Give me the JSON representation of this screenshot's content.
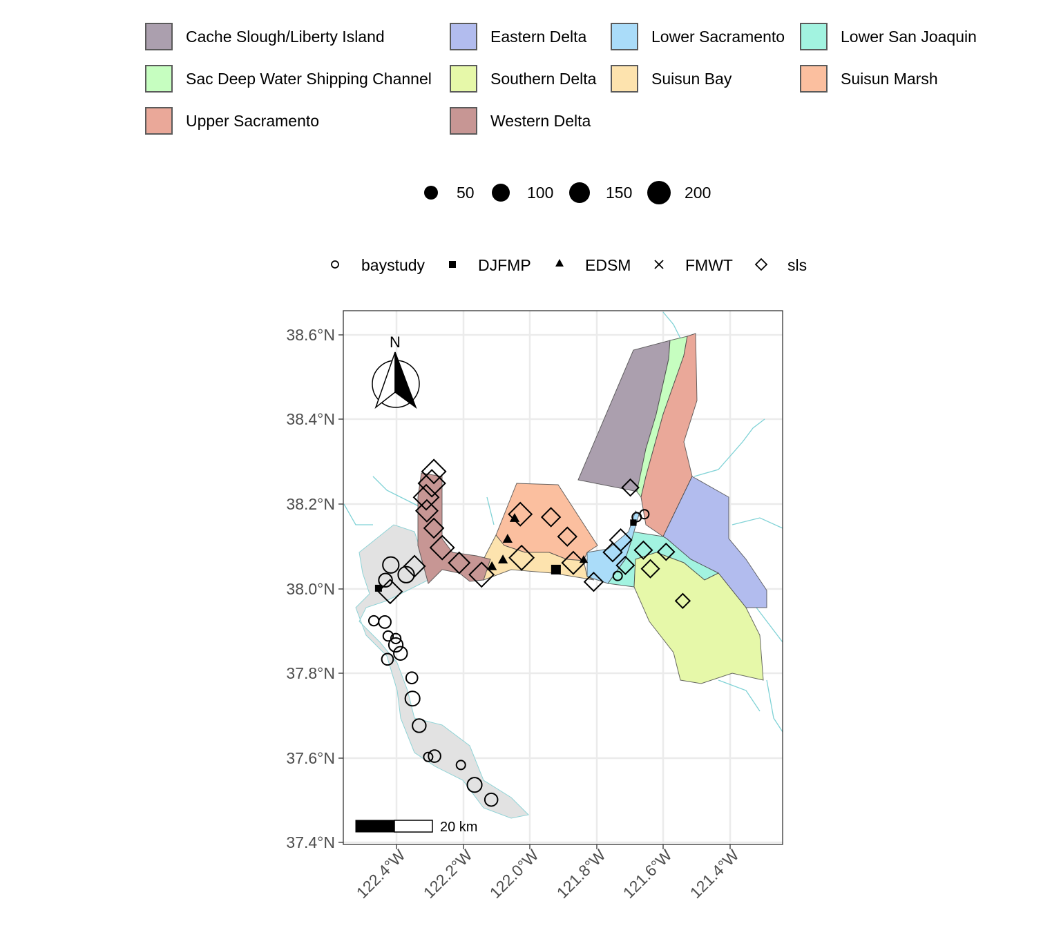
{
  "region_legend": [
    {
      "label": "Cache Slough/Liberty Island",
      "color": "#ab9fae"
    },
    {
      "label": "Eastern Delta",
      "color": "#b2bcee"
    },
    {
      "label": "Lower Sacramento",
      "color": "#aadcf9"
    },
    {
      "label": "Lower San Joaquin",
      "color": "#a2f3e0"
    },
    {
      "label": "Sac Deep Water Shipping Channel",
      "color": "#c6fec0"
    },
    {
      "label": "Southern Delta",
      "color": "#e6f8a9"
    },
    {
      "label": "Suisun Bay",
      "color": "#fde3ae"
    },
    {
      "label": "Suisun Marsh",
      "color": "#fbbf9f"
    },
    {
      "label": "Upper Sacramento",
      "color": "#eaa899"
    },
    {
      "label": "Western Delta",
      "color": "#c79694"
    }
  ],
  "size_legend": [
    "50",
    "100",
    "150",
    "200"
  ],
  "survey_legend": [
    {
      "label": "baystudy",
      "shape": "open-circle"
    },
    {
      "label": "DJFMP",
      "shape": "filled-square"
    },
    {
      "label": "EDSM",
      "shape": "filled-triangle"
    },
    {
      "label": "FMWT",
      "shape": "cross"
    },
    {
      "label": "sls",
      "shape": "open-diamond"
    }
  ],
  "y_ticks": [
    "38.6°N",
    "38.4°N",
    "38.2°N",
    "38.0°N",
    "37.8°N",
    "37.6°N",
    "37.4°N"
  ],
  "x_ticks": [
    "122.4°W",
    "122.2°W",
    "122.0°W",
    "121.8°W",
    "121.6°W",
    "121.4°W"
  ],
  "north_label": "N",
  "scale_label": "20 km",
  "chart_data": {
    "type": "scatter",
    "xlim": [
      -122.56,
      -121.25
    ],
    "ylim": [
      37.39,
      38.66
    ],
    "grid": true,
    "points": [
      {
        "lon": -122.468,
        "lat": 37.924,
        "size": 40,
        "survey": "baystudy"
      },
      {
        "lon": -122.435,
        "lat": 37.921,
        "size": 70,
        "survey": "baystudy"
      },
      {
        "lon": -122.425,
        "lat": 37.888,
        "size": 40,
        "survey": "baystudy"
      },
      {
        "lon": -122.402,
        "lat": 37.882,
        "size": 40,
        "survey": "baystudy"
      },
      {
        "lon": -122.402,
        "lat": 37.867,
        "size": 100,
        "survey": "baystudy"
      },
      {
        "lon": -122.388,
        "lat": 37.847,
        "size": 90,
        "survey": "baystudy"
      },
      {
        "lon": -122.427,
        "lat": 37.833,
        "size": 60,
        "survey": "baystudy"
      },
      {
        "lon": -122.354,
        "lat": 37.789,
        "size": 60,
        "survey": "baystudy"
      },
      {
        "lon": -122.352,
        "lat": 37.74,
        "size": 110,
        "survey": "baystudy"
      },
      {
        "lon": -122.332,
        "lat": 37.676,
        "size": 90,
        "survey": "baystudy"
      },
      {
        "lon": -122.286,
        "lat": 37.604,
        "size": 70,
        "survey": "baystudy"
      },
      {
        "lon": -122.305,
        "lat": 37.602,
        "size": 30,
        "survey": "baystudy"
      },
      {
        "lon": -122.207,
        "lat": 37.583,
        "size": 30,
        "survey": "baystudy"
      },
      {
        "lon": -122.166,
        "lat": 37.536,
        "size": 110,
        "survey": "baystudy"
      },
      {
        "lon": -122.116,
        "lat": 37.501,
        "size": 80,
        "survey": "baystudy"
      },
      {
        "lon": -122.417,
        "lat": 38.056,
        "size": 140,
        "survey": "baystudy"
      },
      {
        "lon": -122.371,
        "lat": 38.033,
        "size": 140,
        "survey": "baystudy"
      },
      {
        "lon": -122.433,
        "lat": 38.02,
        "size": 90,
        "survey": "baystudy"
      },
      {
        "lon": -121.737,
        "lat": 38.03,
        "size": 30,
        "survey": "baystudy"
      },
      {
        "lon": -121.68,
        "lat": 38.169,
        "size": 30,
        "survey": "baystudy"
      },
      {
        "lon": -121.657,
        "lat": 38.176,
        "size": 30,
        "survey": "baystudy"
      },
      {
        "lon": -121.69,
        "lat": 38.156,
        "size": 40,
        "survey": "DJFMP"
      },
      {
        "lon": -121.922,
        "lat": 38.045,
        "size": 120,
        "survey": "DJFMP"
      },
      {
        "lon": -122.454,
        "lat": 38.001,
        "size": 50,
        "survey": "DJFMP"
      },
      {
        "lon": -122.046,
        "lat": 38.167,
        "size": 60,
        "survey": "EDSM"
      },
      {
        "lon": -122.067,
        "lat": 38.118,
        "size": 60,
        "survey": "EDSM"
      },
      {
        "lon": -122.081,
        "lat": 38.069,
        "size": 60,
        "survey": "EDSM"
      },
      {
        "lon": -121.839,
        "lat": 38.069,
        "size": 40,
        "survey": "EDSM"
      },
      {
        "lon": -122.114,
        "lat": 38.053,
        "size": 60,
        "survey": "EDSM"
      },
      {
        "lon": -122.288,
        "lat": 38.277,
        "size": 150,
        "survey": "sls"
      },
      {
        "lon": -122.294,
        "lat": 38.249,
        "size": 200,
        "survey": "sls"
      },
      {
        "lon": -122.311,
        "lat": 38.216,
        "size": 170,
        "survey": "sls"
      },
      {
        "lon": -122.309,
        "lat": 38.184,
        "size": 120,
        "survey": "sls"
      },
      {
        "lon": -122.288,
        "lat": 38.143,
        "size": 90,
        "survey": "sls"
      },
      {
        "lon": -122.263,
        "lat": 38.097,
        "size": 150,
        "survey": "sls"
      },
      {
        "lon": -122.212,
        "lat": 38.061,
        "size": 110,
        "survey": "sls"
      },
      {
        "lon": -122.145,
        "lat": 38.033,
        "size": 160,
        "survey": "sls"
      },
      {
        "lon": -122.029,
        "lat": 38.176,
        "size": 140,
        "survey": "sls"
      },
      {
        "lon": -122.025,
        "lat": 38.073,
        "size": 160,
        "survey": "sls"
      },
      {
        "lon": -121.937,
        "lat": 38.169,
        "size": 80,
        "survey": "sls"
      },
      {
        "lon": -121.888,
        "lat": 38.123,
        "size": 80,
        "survey": "sls"
      },
      {
        "lon": -121.87,
        "lat": 38.061,
        "size": 130,
        "survey": "sls"
      },
      {
        "lon": -121.809,
        "lat": 38.016,
        "size": 80,
        "survey": "sls"
      },
      {
        "lon": -121.714,
        "lat": 38.055,
        "size": 70,
        "survey": "sls"
      },
      {
        "lon": -121.728,
        "lat": 38.115,
        "size": 120,
        "survey": "sls"
      },
      {
        "lon": -121.699,
        "lat": 38.239,
        "size": 60,
        "survey": "sls"
      },
      {
        "lon": -121.66,
        "lat": 38.091,
        "size": 70,
        "survey": "sls"
      },
      {
        "lon": -121.639,
        "lat": 38.047,
        "size": 70,
        "survey": "sls"
      },
      {
        "lon": -121.592,
        "lat": 38.087,
        "size": 60,
        "survey": "sls"
      },
      {
        "lon": -121.542,
        "lat": 37.971,
        "size": 40,
        "survey": "sls"
      },
      {
        "lon": -122.419,
        "lat": 37.993,
        "size": 150,
        "survey": "sls"
      },
      {
        "lon": -122.346,
        "lat": 38.053,
        "size": 110,
        "survey": "sls"
      },
      {
        "lon": -121.752,
        "lat": 38.086,
        "size": 80,
        "survey": "sls"
      }
    ]
  }
}
